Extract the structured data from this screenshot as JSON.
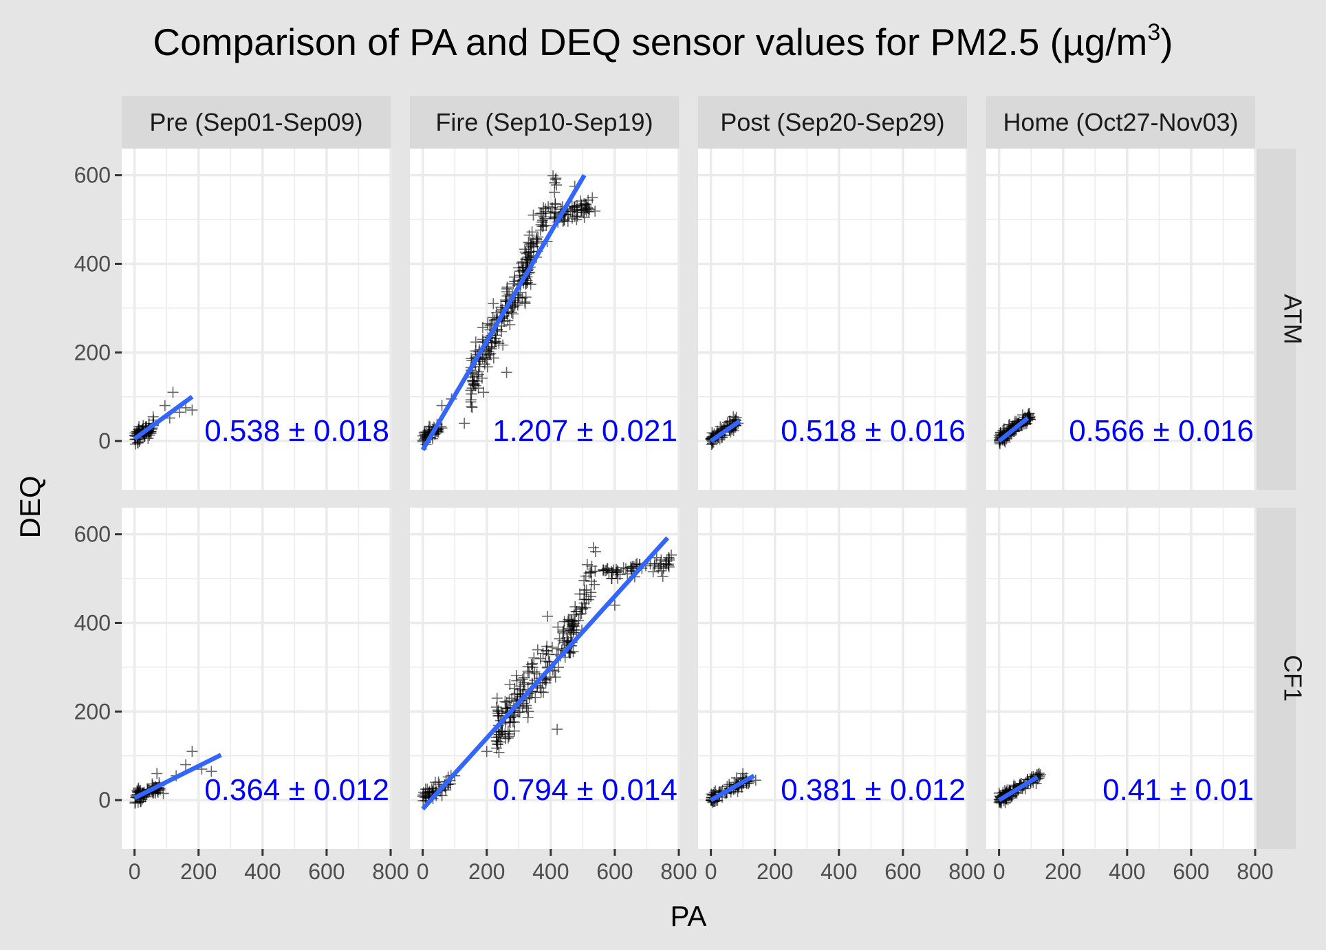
{
  "chart_data": {
    "type": "scatter",
    "title_main": "Comparison of PA and DEQ sensor values for PM2.5 (µg/m",
    "title_sup": "3",
    "title_tail": ")",
    "xlabel": "PA",
    "ylabel": "DEQ",
    "xlim": [
      -40,
      800
    ],
    "ylim": [
      -110,
      660
    ],
    "x_ticks": [
      0,
      200,
      400,
      600,
      800
    ],
    "y_ticks": [
      0,
      200,
      400,
      600
    ],
    "x_tick_labels": [
      "0",
      "200",
      "400",
      "600",
      "800"
    ],
    "y_tick_labels": [
      "0",
      "200",
      "400",
      "600"
    ],
    "columns": [
      "Pre (Sep01-Sep09)",
      "Fire (Sep10-Sep19)",
      "Post (Sep20-Sep29)",
      "Home (Oct27-Nov03)"
    ],
    "rows": [
      "ATM",
      "CF1"
    ],
    "colors": {
      "background": "#e5e5e5",
      "panel": "#ffffff",
      "grid": "#ebebeb",
      "strip": "#d9d9d9",
      "fit_line": "#3366ff",
      "points": "#000000",
      "slope_text": "#0000ff"
    },
    "marker": "plus",
    "panels": [
      {
        "row": "ATM",
        "column": "Pre (Sep01-Sep09)",
        "slope_label": "0.538 ± 0.018",
        "fit": {
          "x0": 0,
          "y0": 5,
          "x1": 180,
          "y1": 100
        },
        "clusters": [
          {
            "cx": [
              0,
              60
            ],
            "slope": 0.5,
            "intercept": 5,
            "spread": 9,
            "n": 70
          }
        ],
        "outliers": [
          [
            120,
            110
          ],
          [
            95,
            80
          ],
          [
            140,
            65
          ],
          [
            160,
            75
          ],
          [
            180,
            70
          ],
          [
            110,
            52
          ]
        ]
      },
      {
        "row": "ATM",
        "column": "Fire (Sep10-Sep19)",
        "slope_label": "1.207 ± 0.021",
        "fit": {
          "x0": 0,
          "y0": -20,
          "x1": 505,
          "y1": 600
        },
        "clusters": [
          {
            "cx": [
              0,
              60
            ],
            "slope": 0.55,
            "intercept": 5,
            "spread": 8,
            "n": 45
          },
          {
            "cx": [
              150,
              340
            ],
            "slope": 1.45,
            "intercept": -80,
            "spread": 30,
            "n": 170
          },
          {
            "cx": [
              320,
              420
            ],
            "slope": 2.2,
            "intercept": -330,
            "spread": 30,
            "n": 60
          },
          {
            "cx": [
              410,
              540
            ],
            "slope": 0.2,
            "intercept": 425,
            "spread": 10,
            "n": 55
          }
        ],
        "outliers": [
          [
            130,
            40
          ],
          [
            262,
            155
          ],
          [
            90,
            95
          ],
          [
            505,
            505
          ],
          [
            475,
            575
          ],
          [
            280,
            330
          ],
          [
            190,
            110
          ],
          [
            60,
            80
          ]
        ]
      },
      {
        "row": "ATM",
        "column": "Post (Sep20-Sep29)",
        "slope_label": "0.518 ± 0.016",
        "fit": {
          "x0": 0,
          "y0": 0,
          "x1": 90,
          "y1": 45
        },
        "clusters": [
          {
            "cx": [
              0,
              80
            ],
            "slope": 0.5,
            "intercept": 2,
            "spread": 7,
            "n": 75
          }
        ],
        "outliers": [
          [
            70,
            55
          ],
          [
            60,
            45
          ],
          [
            85,
            40
          ]
        ]
      },
      {
        "row": "ATM",
        "column": "Home (Oct27-Nov03)",
        "slope_label": "0.566 ± 0.016",
        "fit": {
          "x0": 0,
          "y0": 0,
          "x1": 90,
          "y1": 52
        },
        "clusters": [
          {
            "cx": [
              0,
              100
            ],
            "slope": 0.55,
            "intercept": 2,
            "spread": 7,
            "n": 110
          }
        ],
        "outliers": []
      },
      {
        "row": "CF1",
        "column": "Pre (Sep01-Sep09)",
        "slope_label": "0.364 ± 0.012",
        "fit": {
          "x0": 0,
          "y0": 5,
          "x1": 270,
          "y1": 102
        },
        "clusters": [
          {
            "cx": [
              0,
              80
            ],
            "slope": 0.36,
            "intercept": 5,
            "spread": 8,
            "n": 70
          }
        ],
        "outliers": [
          [
            180,
            110
          ],
          [
            160,
            80
          ],
          [
            210,
            70
          ],
          [
            70,
            60
          ],
          [
            130,
            55
          ],
          [
            240,
            65
          ],
          [
            90,
            15
          ]
        ]
      },
      {
        "row": "CF1",
        "column": "Fire (Sep10-Sep19)",
        "slope_label": "0.794 ± 0.014",
        "fit": {
          "x0": 0,
          "y0": -20,
          "x1": 765,
          "y1": 592
        },
        "clusters": [
          {
            "cx": [
              0,
              90
            ],
            "slope": 0.4,
            "intercept": 5,
            "spread": 8,
            "n": 45
          },
          {
            "cx": [
              230,
              480
            ],
            "slope": 0.95,
            "intercept": -60,
            "spread": 28,
            "n": 170
          },
          {
            "cx": [
              450,
              540
            ],
            "slope": 2.2,
            "intercept": -650,
            "spread": 30,
            "n": 50
          },
          {
            "cx": [
              560,
              780
            ],
            "slope": 0.12,
            "intercept": 445,
            "spread": 10,
            "n": 55
          }
        ],
        "outliers": [
          [
            390,
            415
          ],
          [
            590,
            500
          ],
          [
            750,
            505
          ],
          [
            420,
            160
          ],
          [
            200,
            110
          ],
          [
            100,
            55
          ],
          [
            330,
            200
          ],
          [
            600,
            440
          ]
        ]
      },
      {
        "row": "CF1",
        "column": "Post (Sep20-Sep29)",
        "slope_label": "0.381 ± 0.012",
        "fit": {
          "x0": 0,
          "y0": 0,
          "x1": 135,
          "y1": 55
        },
        "clusters": [
          {
            "cx": [
              0,
              120
            ],
            "slope": 0.38,
            "intercept": 2,
            "spread": 7,
            "n": 75
          }
        ],
        "outliers": [
          [
            100,
            60
          ],
          [
            140,
            45
          ],
          [
            80,
            50
          ]
        ]
      },
      {
        "row": "CF1",
        "column": "Home (Oct27-Nov03)",
        "slope_label": "0.41 ± 0.01",
        "fit": {
          "x0": 0,
          "y0": 0,
          "x1": 120,
          "y1": 52
        },
        "clusters": [
          {
            "cx": [
              0,
              130
            ],
            "slope": 0.41,
            "intercept": 2,
            "spread": 6,
            "n": 110
          }
        ],
        "outliers": []
      }
    ]
  }
}
